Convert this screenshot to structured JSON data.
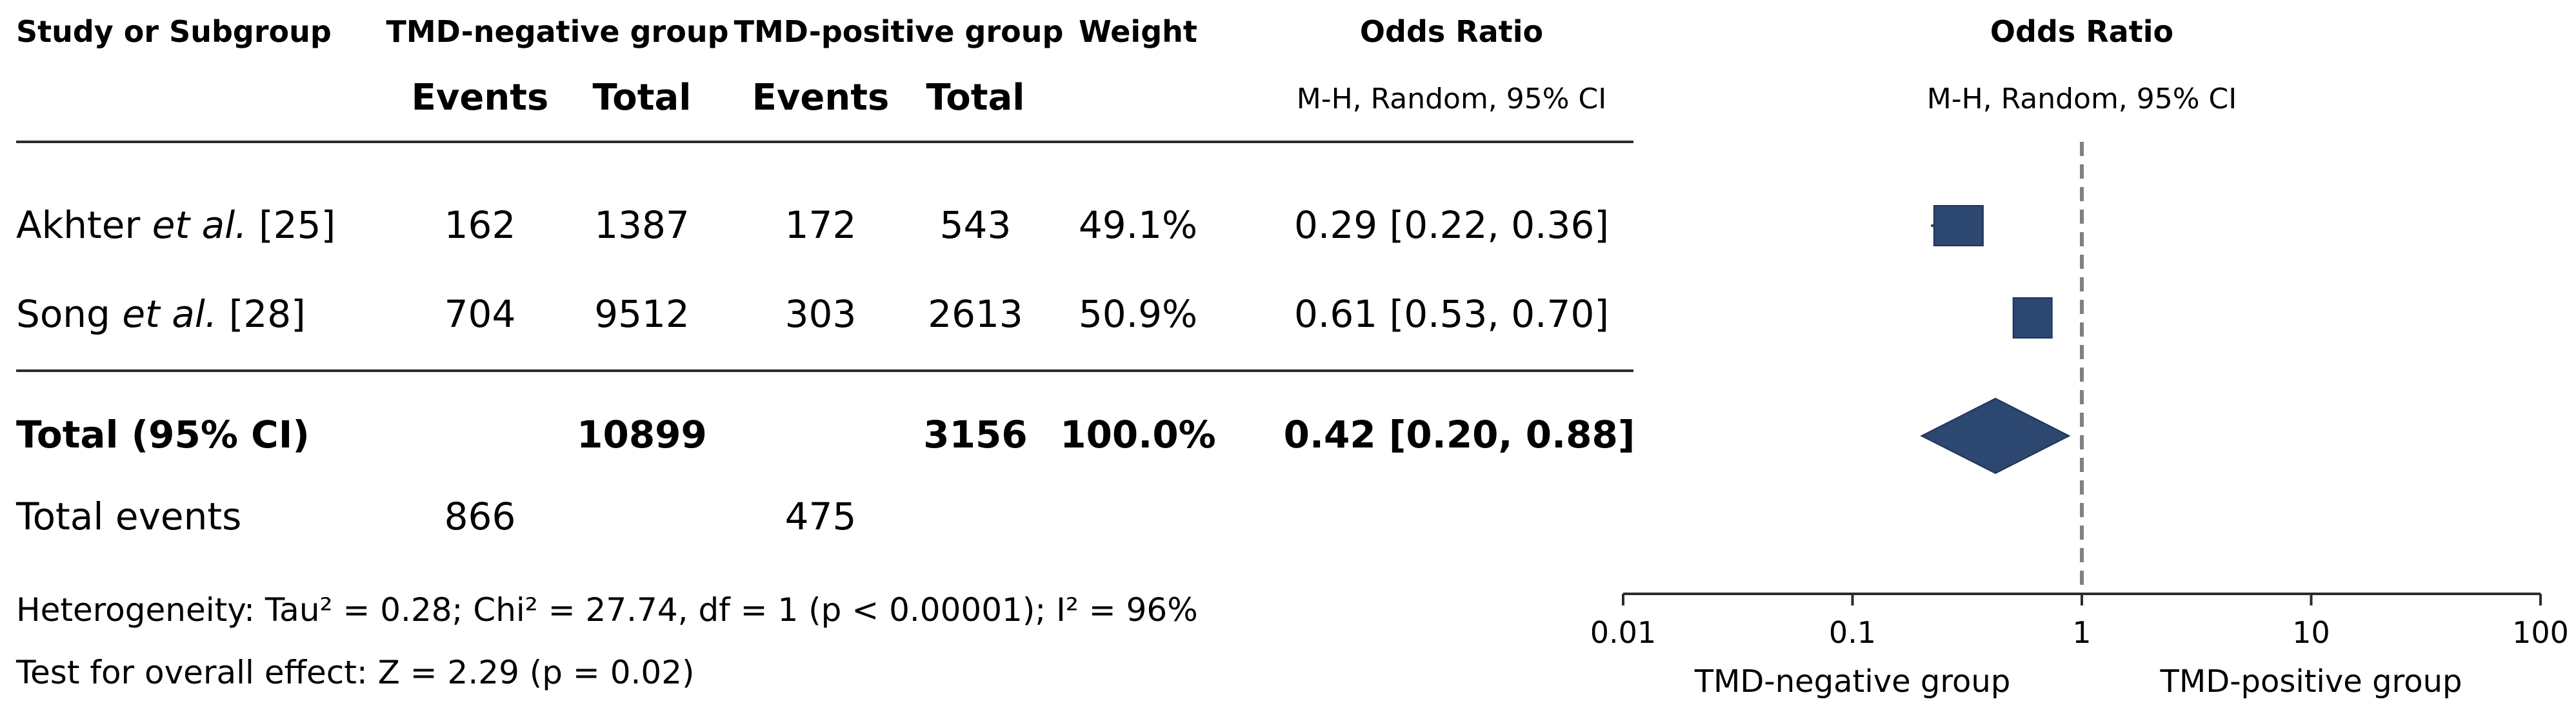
{
  "table": {
    "headers": {
      "study": "Study or Subgroup",
      "group_a": "TMD-negative group",
      "group_b": "TMD-positive group",
      "weight": "Weight",
      "odds_ratio": "Odds Ratio",
      "events": "Events",
      "total": "Total",
      "method": "M-H, Random, 95% CI"
    },
    "studies": [
      {
        "name_pre": "Akhter ",
        "name_em": "et al.",
        "name_post": " [25]",
        "a_events": "162",
        "a_total": "1387",
        "b_events": "172",
        "b_total": "543",
        "weight": "49.1%",
        "or_text": "0.29 [0.22, 0.36]"
      },
      {
        "name_pre": "Song ",
        "name_em": "et al.",
        "name_post": " [28]",
        "a_events": "704",
        "a_total": "9512",
        "b_events": "303",
        "b_total": "2613",
        "weight": "50.9%",
        "or_text": "0.61 [0.53, 0.70]"
      }
    ],
    "total_row": {
      "label": "Total (95% CI)",
      "a_total": "10899",
      "b_total": "3156",
      "weight": "100.0%",
      "or_text": "0.42 [0.20, 0.88]"
    },
    "events_row": {
      "label": "Total events",
      "a_events": "866",
      "b_events": "475"
    },
    "heterogeneity": "Heterogeneity: Tau² = 0.28; Chi² = 27.74, df = 1 (p < 0.00001); I² = 96%",
    "overall_effect": "Test for overall effect: Z = 2.29 (p = 0.02)"
  },
  "chart_data": {
    "type": "forest",
    "title": "Odds Ratio",
    "subtitle": "M-H, Random, 95% CI",
    "x_scale": "log",
    "xlim": [
      0.01,
      100
    ],
    "ticks": [
      0.01,
      0.1,
      1,
      10,
      100
    ],
    "tick_labels": [
      "0.01",
      "0.1",
      "1",
      "10",
      "100"
    ],
    "reference_line": 1,
    "favours_left": "TMD-negative group",
    "favours_right": "TMD-positive group",
    "studies": [
      {
        "or": 0.29,
        "ci": [
          0.22,
          0.36
        ]
      },
      {
        "or": 0.61,
        "ci": [
          0.53,
          0.7
        ]
      }
    ],
    "pooled": {
      "or": 0.42,
      "ci": [
        0.2,
        0.88
      ]
    },
    "colors": {
      "marker": "#2c4770",
      "reference": "#808080",
      "axis": "#2b2b2b"
    }
  }
}
